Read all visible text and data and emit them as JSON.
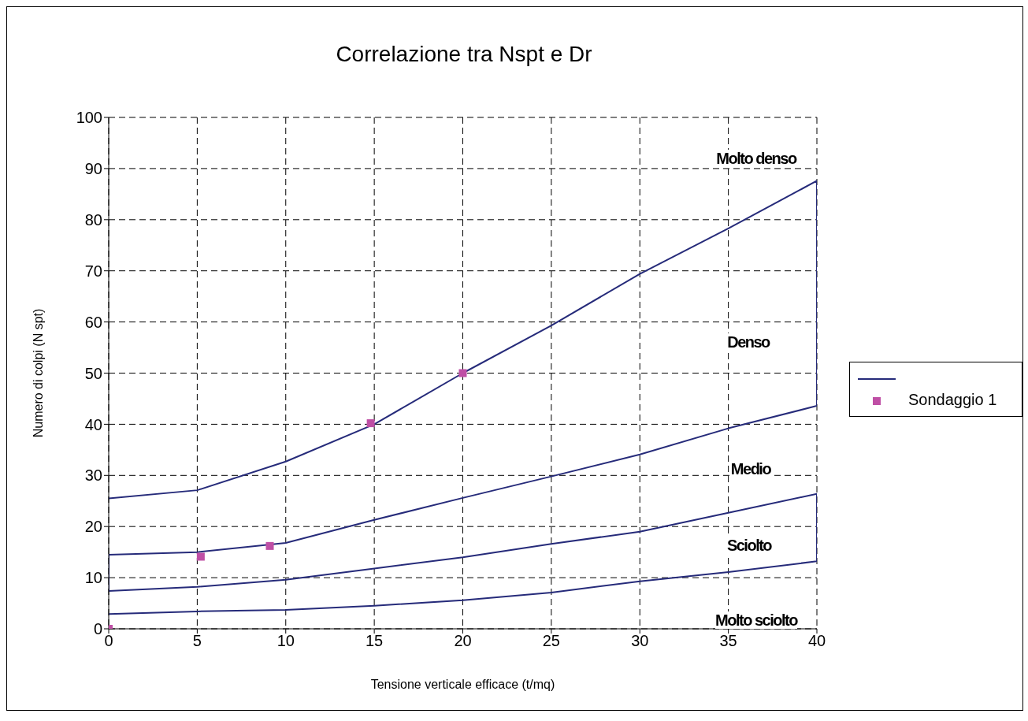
{
  "chart_data": {
    "type": "line",
    "title": "Correlazione tra Nspt e Dr",
    "xlabel": "Tensione verticale efficace (t/mq)",
    "ylabel": "Numero di colpi (N spt)",
    "xlim": [
      0,
      40
    ],
    "ylim": [
      0,
      100
    ],
    "xticks": [
      0,
      5,
      10,
      15,
      20,
      25,
      30,
      35,
      40
    ],
    "yticks": [
      0,
      10,
      20,
      30,
      40,
      50,
      60,
      70,
      80,
      90,
      100
    ],
    "grid": true,
    "legend": "right",
    "series": [
      {
        "color": "#262b7a",
        "marker": "none",
        "x": [
          0,
          5,
          10,
          15,
          20,
          25,
          30,
          35,
          40,
          40,
          35,
          30,
          25,
          20,
          15,
          10,
          5,
          0,
          0,
          5,
          10,
          15,
          20,
          25,
          30,
          35,
          40,
          40,
          35,
          30,
          25,
          20,
          15,
          10,
          5,
          0
        ],
        "values": [
          25.5,
          27.1,
          32.7,
          40,
          50,
          59.3,
          69.4,
          78.3,
          87.6,
          43.6,
          39.2,
          34.1,
          29.8,
          25.6,
          21.3,
          16.8,
          15.0,
          14.5,
          7.4,
          8.2,
          9.6,
          11.8,
          14.0,
          16.6,
          19.0,
          22.7,
          26.4,
          13.2,
          11.1,
          9.3,
          7.1,
          5.6,
          4.5,
          3.7,
          3.4,
          2.9
        ]
      },
      {
        "type": "scatter",
        "name": "Sondaggio 1",
        "color": "#bf4fa5",
        "marker": "square",
        "x": [
          0,
          5.2,
          9.1,
          14.8,
          20
        ],
        "values": [
          0,
          14.1,
          16.2,
          40.2,
          50
        ]
      }
    ],
    "annotations": [
      "Molto denso",
      "Denso",
      "Medio",
      "Sciolto",
      "Molto sciolto"
    ]
  }
}
